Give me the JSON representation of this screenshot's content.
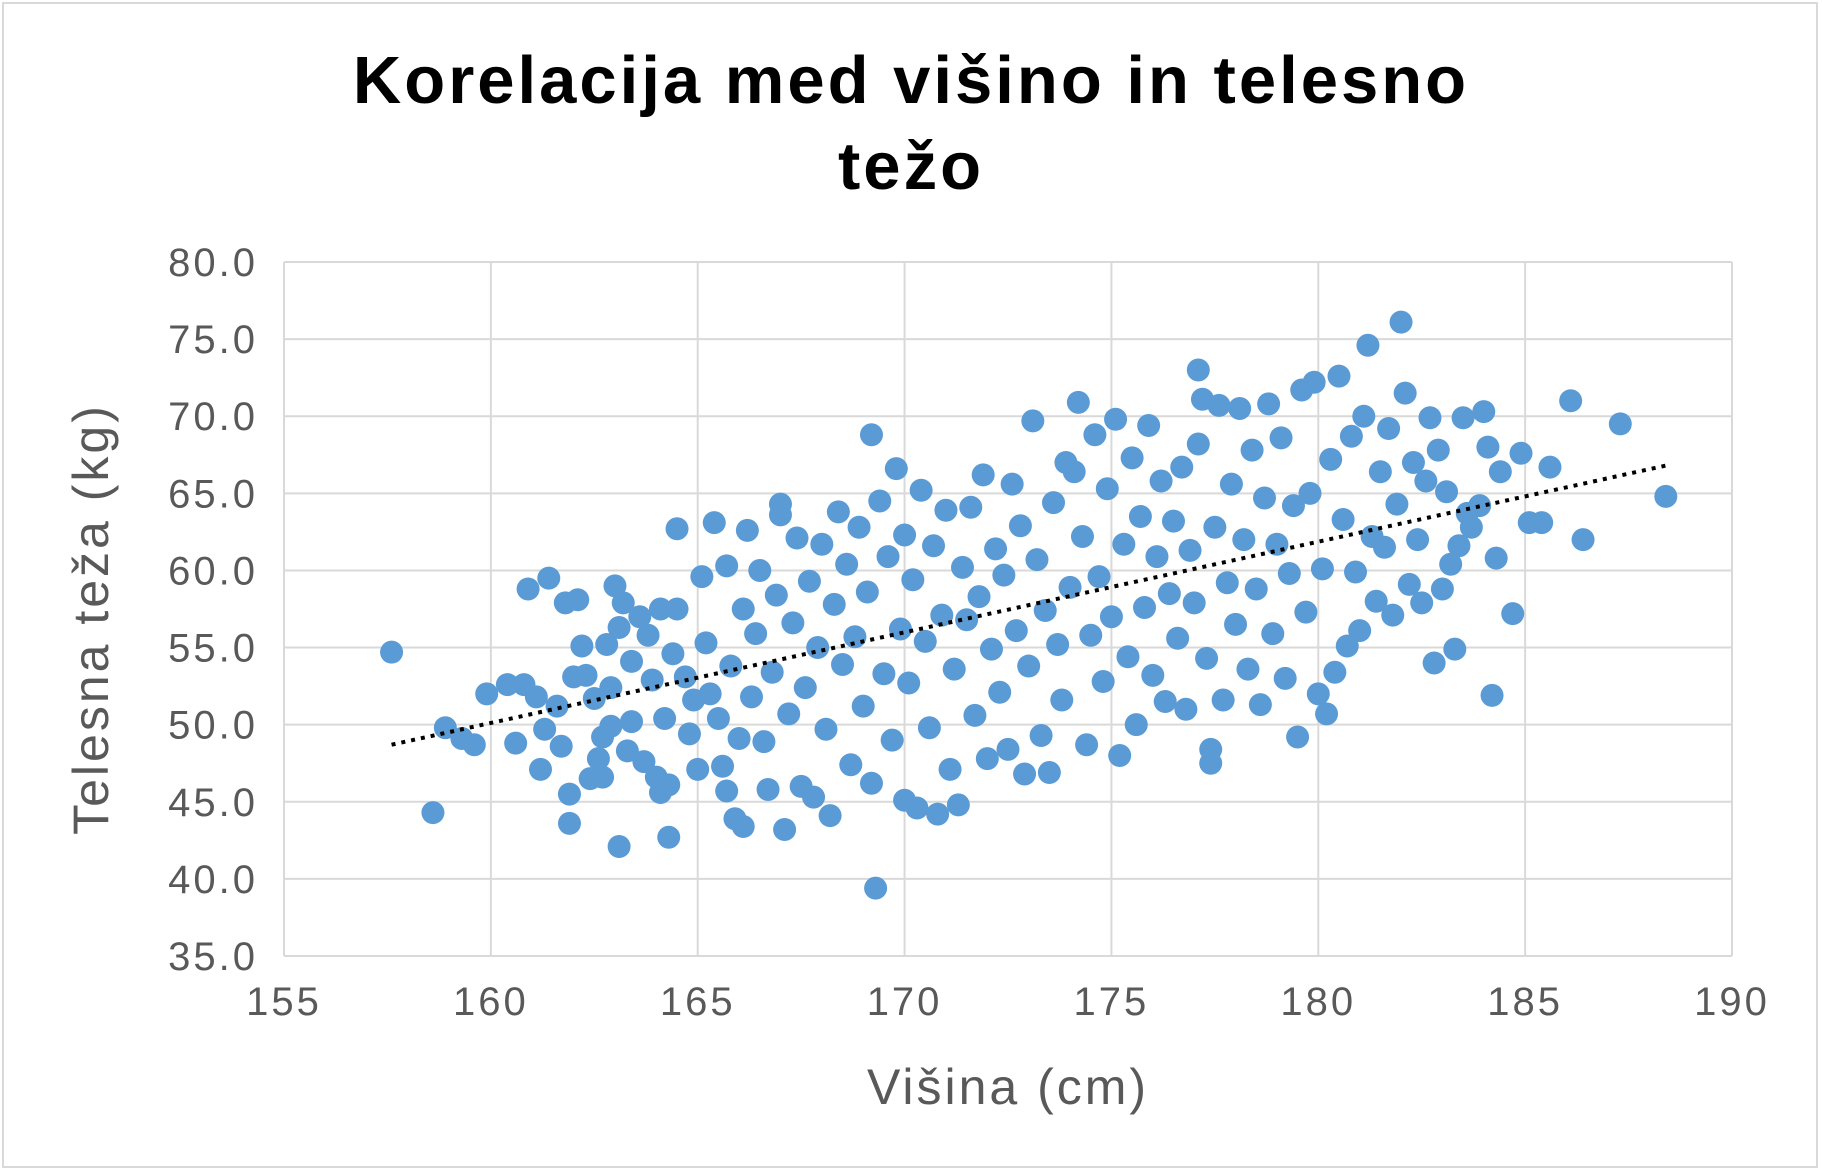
{
  "chart_data": {
    "type": "scatter",
    "title_lines": [
      "Korelacija med višino in telesno",
      "težo"
    ],
    "xlabel": "Višina (cm)",
    "ylabel": "Telesna teža (kg)",
    "xlim": [
      155,
      190
    ],
    "ylim": [
      35,
      80
    ],
    "x_ticks": [
      "155",
      "160",
      "165",
      "170",
      "175",
      "180",
      "185",
      "190"
    ],
    "y_ticks": [
      "35.0",
      "40.0",
      "45.0",
      "50.0",
      "55.0",
      "60.0",
      "65.0",
      "70.0",
      "75.0",
      "80.0"
    ],
    "grid": true,
    "legend": "none",
    "marker_color": "#5b9bd5",
    "trendline": {
      "type": "linear",
      "style": "dotted",
      "color": "#000000",
      "from": [
        157.6,
        48.7
      ],
      "to": [
        188.4,
        66.8
      ]
    },
    "series": [
      {
        "points": [
          [
            157.6,
            54.7
          ],
          [
            158.6,
            44.3
          ],
          [
            158.9,
            49.8
          ],
          [
            159.3,
            49.1
          ],
          [
            159.6,
            48.7
          ],
          [
            159.9,
            52.0
          ],
          [
            160.4,
            52.6
          ],
          [
            160.6,
            48.8
          ],
          [
            160.8,
            52.6
          ],
          [
            160.9,
            58.8
          ],
          [
            161.1,
            51.8
          ],
          [
            161.2,
            47.1
          ],
          [
            161.3,
            49.7
          ],
          [
            161.4,
            59.5
          ],
          [
            161.6,
            51.2
          ],
          [
            161.7,
            48.6
          ],
          [
            161.8,
            57.9
          ],
          [
            161.9,
            45.5
          ],
          [
            161.9,
            43.6
          ],
          [
            162.0,
            53.1
          ],
          [
            162.1,
            58.1
          ],
          [
            162.2,
            55.1
          ],
          [
            162.3,
            53.2
          ],
          [
            162.4,
            46.5
          ],
          [
            162.5,
            51.7
          ],
          [
            162.6,
            47.8
          ],
          [
            162.7,
            49.2
          ],
          [
            162.7,
            46.6
          ],
          [
            162.8,
            55.2
          ],
          [
            162.9,
            49.9
          ],
          [
            162.9,
            52.4
          ],
          [
            163.0,
            59.0
          ],
          [
            163.1,
            42.1
          ],
          [
            163.1,
            56.3
          ],
          [
            163.2,
            57.9
          ],
          [
            163.3,
            48.3
          ],
          [
            163.4,
            54.1
          ],
          [
            163.4,
            50.2
          ],
          [
            163.6,
            57.0
          ],
          [
            163.7,
            47.6
          ],
          [
            163.8,
            55.8
          ],
          [
            163.9,
            52.9
          ],
          [
            164.0,
            46.6
          ],
          [
            164.1,
            57.5
          ],
          [
            164.1,
            45.6
          ],
          [
            164.2,
            50.4
          ],
          [
            164.3,
            46.1
          ],
          [
            164.3,
            42.7
          ],
          [
            164.4,
            54.6
          ],
          [
            164.5,
            62.7
          ],
          [
            164.5,
            57.5
          ],
          [
            164.7,
            53.1
          ],
          [
            164.8,
            49.4
          ],
          [
            164.9,
            51.6
          ],
          [
            165.0,
            47.1
          ],
          [
            165.1,
            59.6
          ],
          [
            165.2,
            55.3
          ],
          [
            165.3,
            52.0
          ],
          [
            165.4,
            63.1
          ],
          [
            165.5,
            50.4
          ],
          [
            165.6,
            47.3
          ],
          [
            165.7,
            60.3
          ],
          [
            165.7,
            45.7
          ],
          [
            165.8,
            53.8
          ],
          [
            165.9,
            43.9
          ],
          [
            166.0,
            49.1
          ],
          [
            166.1,
            43.4
          ],
          [
            166.1,
            57.5
          ],
          [
            166.2,
            62.6
          ],
          [
            166.3,
            51.8
          ],
          [
            166.4,
            55.9
          ],
          [
            166.5,
            60.0
          ],
          [
            166.6,
            48.9
          ],
          [
            166.7,
            45.8
          ],
          [
            166.8,
            53.4
          ],
          [
            166.9,
            58.4
          ],
          [
            167.0,
            64.3
          ],
          [
            167.0,
            63.6
          ],
          [
            167.1,
            43.2
          ],
          [
            167.2,
            50.7
          ],
          [
            167.3,
            56.6
          ],
          [
            167.4,
            62.1
          ],
          [
            167.5,
            46.0
          ],
          [
            167.6,
            52.4
          ],
          [
            167.7,
            59.3
          ],
          [
            167.8,
            45.3
          ],
          [
            167.9,
            55.0
          ],
          [
            168.0,
            61.7
          ],
          [
            168.1,
            49.7
          ],
          [
            168.2,
            44.1
          ],
          [
            168.3,
            57.8
          ],
          [
            168.4,
            63.8
          ],
          [
            168.5,
            53.9
          ],
          [
            168.6,
            60.4
          ],
          [
            168.7,
            47.4
          ],
          [
            168.8,
            55.7
          ],
          [
            168.9,
            62.8
          ],
          [
            169.0,
            51.2
          ],
          [
            169.1,
            58.6
          ],
          [
            169.2,
            46.2
          ],
          [
            169.2,
            68.8
          ],
          [
            169.3,
            39.4
          ],
          [
            169.4,
            64.5
          ],
          [
            169.5,
            53.3
          ],
          [
            169.6,
            60.9
          ],
          [
            169.7,
            49.0
          ],
          [
            169.8,
            66.6
          ],
          [
            169.9,
            56.2
          ],
          [
            170.0,
            45.1
          ],
          [
            170.0,
            62.3
          ],
          [
            170.1,
            52.7
          ],
          [
            170.2,
            59.4
          ],
          [
            170.3,
            44.6
          ],
          [
            170.4,
            65.2
          ],
          [
            170.5,
            55.4
          ],
          [
            170.6,
            49.8
          ],
          [
            170.7,
            61.6
          ],
          [
            170.8,
            44.2
          ],
          [
            170.9,
            57.1
          ],
          [
            171.0,
            63.9
          ],
          [
            171.1,
            47.1
          ],
          [
            171.2,
            53.6
          ],
          [
            171.3,
            44.8
          ],
          [
            171.4,
            60.2
          ],
          [
            171.5,
            56.8
          ],
          [
            171.6,
            64.1
          ],
          [
            171.7,
            50.6
          ],
          [
            171.8,
            58.3
          ],
          [
            171.9,
            66.2
          ],
          [
            172.0,
            47.8
          ],
          [
            172.1,
            54.9
          ],
          [
            172.2,
            61.4
          ],
          [
            172.3,
            52.1
          ],
          [
            172.4,
            59.7
          ],
          [
            172.5,
            48.4
          ],
          [
            172.6,
            65.6
          ],
          [
            172.7,
            56.1
          ],
          [
            172.8,
            62.9
          ],
          [
            172.9,
            46.8
          ],
          [
            173.0,
            53.8
          ],
          [
            173.1,
            69.7
          ],
          [
            173.2,
            60.7
          ],
          [
            173.3,
            49.3
          ],
          [
            173.4,
            57.4
          ],
          [
            173.5,
            46.9
          ],
          [
            173.6,
            64.4
          ],
          [
            173.7,
            55.2
          ],
          [
            173.8,
            51.6
          ],
          [
            173.9,
            67.0
          ],
          [
            174.0,
            58.9
          ],
          [
            174.1,
            66.4
          ],
          [
            174.2,
            70.9
          ],
          [
            174.3,
            62.2
          ],
          [
            174.4,
            48.7
          ],
          [
            174.5,
            55.8
          ],
          [
            174.6,
            68.8
          ],
          [
            174.7,
            59.6
          ],
          [
            174.8,
            52.8
          ],
          [
            174.9,
            65.3
          ],
          [
            175.0,
            57.0
          ],
          [
            175.1,
            69.8
          ],
          [
            175.2,
            48.0
          ],
          [
            175.3,
            61.7
          ],
          [
            175.4,
            54.4
          ],
          [
            175.5,
            67.3
          ],
          [
            175.6,
            50.0
          ],
          [
            175.7,
            63.5
          ],
          [
            175.8,
            57.6
          ],
          [
            175.9,
            69.4
          ],
          [
            176.0,
            53.2
          ],
          [
            176.1,
            60.9
          ],
          [
            176.2,
            65.8
          ],
          [
            176.3,
            51.5
          ],
          [
            176.4,
            58.5
          ],
          [
            176.5,
            63.2
          ],
          [
            176.6,
            55.6
          ],
          [
            176.7,
            66.7
          ],
          [
            176.8,
            51.0
          ],
          [
            176.9,
            61.3
          ],
          [
            177.0,
            57.9
          ],
          [
            177.1,
            68.2
          ],
          [
            177.1,
            73.0
          ],
          [
            177.2,
            71.1
          ],
          [
            177.3,
            54.3
          ],
          [
            177.4,
            47.5
          ],
          [
            177.4,
            48.4
          ],
          [
            177.5,
            62.8
          ],
          [
            177.6,
            70.7
          ],
          [
            177.7,
            51.6
          ],
          [
            177.8,
            59.2
          ],
          [
            177.9,
            65.6
          ],
          [
            178.0,
            56.5
          ],
          [
            178.1,
            70.5
          ],
          [
            178.2,
            62.0
          ],
          [
            178.3,
            53.6
          ],
          [
            178.4,
            67.8
          ],
          [
            178.5,
            58.8
          ],
          [
            178.6,
            51.3
          ],
          [
            178.7,
            64.7
          ],
          [
            178.8,
            70.8
          ],
          [
            178.9,
            55.9
          ],
          [
            179.0,
            61.7
          ],
          [
            179.1,
            68.6
          ],
          [
            179.2,
            53.0
          ],
          [
            179.3,
            59.8
          ],
          [
            179.4,
            64.2
          ],
          [
            179.5,
            49.2
          ],
          [
            179.6,
            71.7
          ],
          [
            179.7,
            57.3
          ],
          [
            179.8,
            65.0
          ],
          [
            179.9,
            72.2
          ],
          [
            180.0,
            52.0
          ],
          [
            180.1,
            60.1
          ],
          [
            180.2,
            50.7
          ],
          [
            180.3,
            67.2
          ],
          [
            180.4,
            53.4
          ],
          [
            180.5,
            72.6
          ],
          [
            180.6,
            63.3
          ],
          [
            180.7,
            55.1
          ],
          [
            180.8,
            68.7
          ],
          [
            180.9,
            59.9
          ],
          [
            181.0,
            56.1
          ],
          [
            181.1,
            70.0
          ],
          [
            181.2,
            74.6
          ],
          [
            181.3,
            62.2
          ],
          [
            181.4,
            58.0
          ],
          [
            181.5,
            66.4
          ],
          [
            181.6,
            61.5
          ],
          [
            181.7,
            69.2
          ],
          [
            181.8,
            57.1
          ],
          [
            181.9,
            64.3
          ],
          [
            182.0,
            76.1
          ],
          [
            182.1,
            71.5
          ],
          [
            182.2,
            59.1
          ],
          [
            182.3,
            67.0
          ],
          [
            182.4,
            62.0
          ],
          [
            182.5,
            57.9
          ],
          [
            182.6,
            65.8
          ],
          [
            182.7,
            69.9
          ],
          [
            182.8,
            54.0
          ],
          [
            182.9,
            67.8
          ],
          [
            183.0,
            58.8
          ],
          [
            183.1,
            65.1
          ],
          [
            183.2,
            60.4
          ],
          [
            183.3,
            54.9
          ],
          [
            183.4,
            61.6
          ],
          [
            183.5,
            69.9
          ],
          [
            183.6,
            63.7
          ],
          [
            183.7,
            62.8
          ],
          [
            183.9,
            64.2
          ],
          [
            184.0,
            70.3
          ],
          [
            184.1,
            68.0
          ],
          [
            184.2,
            51.9
          ],
          [
            184.3,
            60.8
          ],
          [
            184.4,
            66.4
          ],
          [
            184.7,
            57.2
          ],
          [
            184.9,
            67.6
          ],
          [
            185.1,
            63.1
          ],
          [
            185.4,
            63.1
          ],
          [
            185.6,
            66.7
          ],
          [
            186.1,
            71.0
          ],
          [
            186.4,
            62.0
          ],
          [
            187.3,
            69.5
          ],
          [
            188.4,
            64.8
          ]
        ]
      }
    ]
  }
}
